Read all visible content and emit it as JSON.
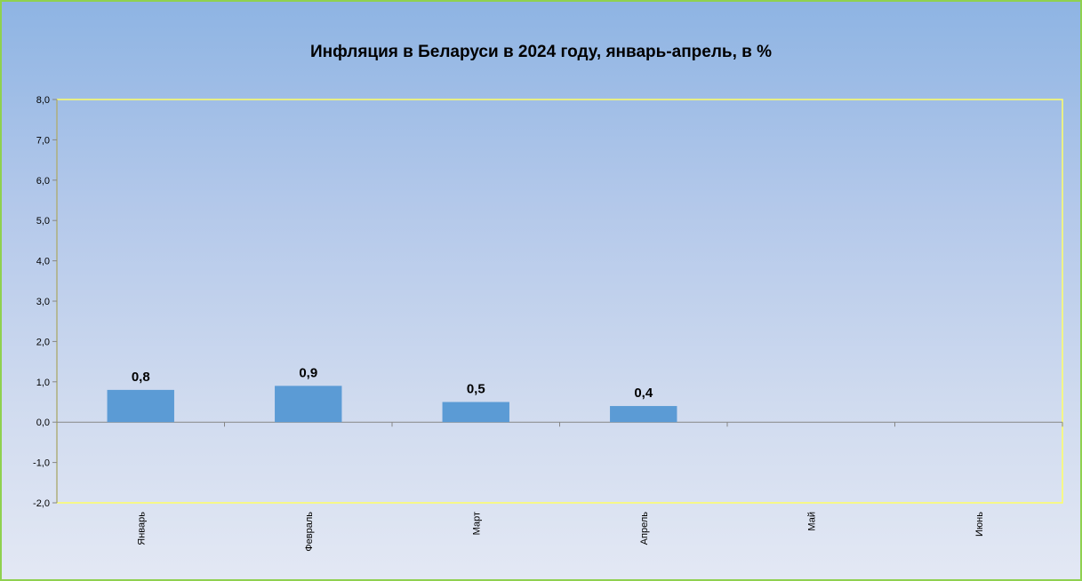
{
  "chart_data": {
    "type": "bar",
    "title": "Инфляция в Беларуси в 2024 году, январь-апрель, в %",
    "xlabel": "",
    "ylabel": "",
    "categories": [
      "Январь",
      "Февраль",
      "Март",
      "Апрель",
      "Май",
      "Июнь"
    ],
    "values": [
      0.8,
      0.9,
      0.5,
      0.4,
      null,
      null
    ],
    "data_labels": [
      "0,8",
      "0,9",
      "0,5",
      "0,4",
      "",
      ""
    ],
    "ylim": [
      -2.0,
      8.0
    ],
    "yticks": [
      8.0,
      7.0,
      6.0,
      5.0,
      4.0,
      3.0,
      2.0,
      1.0,
      0.0,
      -1.0,
      -2.0
    ],
    "ytick_labels": [
      "8,0",
      "7,0",
      "6,0",
      "5,0",
      "4,0",
      "3,0",
      "2,0",
      "1,0",
      "0,0",
      "-1,0",
      "-2,0"
    ],
    "grid": false,
    "legend": "none",
    "colors": {
      "bar": "#5b9bd5",
      "plot_border": "#ffff66",
      "frame_border": "#8fd14f",
      "axis": "#868686"
    }
  }
}
